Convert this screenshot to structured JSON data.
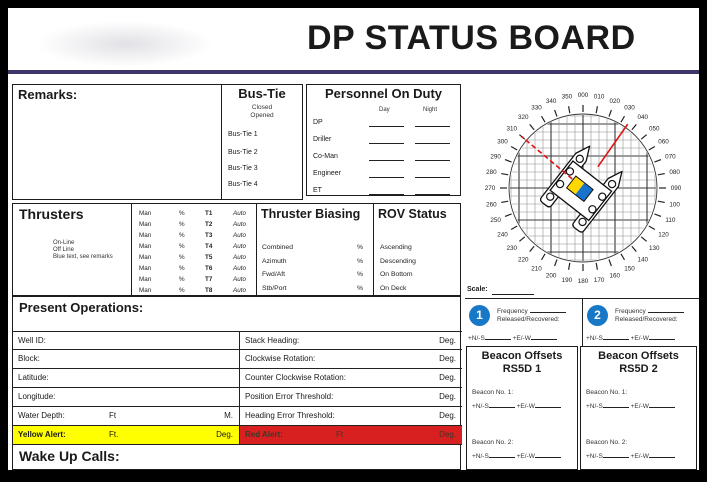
{
  "title": "DP STATUS BOARD",
  "remarks": {
    "label": "Remarks:"
  },
  "bus_tie": {
    "title": "Bus-Tie",
    "state_labels": [
      "Closed",
      "Opened"
    ],
    "items": [
      "Bus-Tie 1",
      "Bus-Tie 2",
      "Bus-Tie 3",
      "Bus-Tie 4"
    ]
  },
  "personnel": {
    "title": "Personnel On Duty",
    "columns": [
      "Day",
      "Night"
    ],
    "rows": [
      "DP",
      "Driller",
      "Co-Man",
      "Engineer",
      "ET"
    ]
  },
  "thrusters": {
    "title": "Thrusters",
    "legend": [
      "On-Line",
      "Off Line",
      "Blue text, see remarks"
    ],
    "rows": [
      {
        "man": "Man",
        "pct": "%",
        "id": "T1",
        "auto": "Auto"
      },
      {
        "man": "Man",
        "pct": "%",
        "id": "T2",
        "auto": "Auto"
      },
      {
        "man": "Man",
        "pct": "%",
        "id": "T3",
        "auto": "Auto"
      },
      {
        "man": "Man",
        "pct": "%",
        "id": "T4",
        "auto": "Auto"
      },
      {
        "man": "Man",
        "pct": "%",
        "id": "T5",
        "auto": "Auto"
      },
      {
        "man": "Man",
        "pct": "%",
        "id": "T6",
        "auto": "Auto"
      },
      {
        "man": "Man",
        "pct": "%",
        "id": "T7",
        "auto": "Auto"
      },
      {
        "man": "Man",
        "pct": "%",
        "id": "T8",
        "auto": "Auto"
      }
    ]
  },
  "thruster_biasing": {
    "title": "Thruster Biasing",
    "rows": [
      {
        "label": "Combined",
        "value": "%"
      },
      {
        "label": "Azimuth",
        "value": "%"
      },
      {
        "label": "Fwd/Aft",
        "value": "%"
      },
      {
        "label": "Stb/Port",
        "value": "%"
      }
    ]
  },
  "rov_status": {
    "title": "ROV Status",
    "items": [
      "Ascending",
      "Descending",
      "On Bottom",
      "On Deck"
    ]
  },
  "present_operations": {
    "title": "Present Operations:"
  },
  "ops_table": {
    "left_rows": [
      {
        "label": "Well ID:"
      },
      {
        "label": "Block:"
      },
      {
        "label": "Latitude:"
      },
      {
        "label": "Longitude:"
      },
      {
        "label": "Water Depth:",
        "unit1": "Ft",
        "unit2": "M."
      },
      {
        "label": "Yellow Alert:",
        "unit1": "Ft.",
        "unit2": "Deg."
      }
    ],
    "right_rows": [
      {
        "label": "Stack Heading:",
        "unit": "Deg."
      },
      {
        "label": "Clockwise Rotation:",
        "unit": "Deg."
      },
      {
        "label": "Counter Clockwise Rotation:",
        "unit": "Deg."
      },
      {
        "label": "Position Error Threshold:",
        "unit": "Deg."
      },
      {
        "label": "Heading Error Threshold:",
        "unit": "Deg."
      },
      {
        "label": "Red Alert:",
        "mid": "Ft",
        "unit": "Deg."
      }
    ]
  },
  "wake_up_calls": {
    "label": "Wake Up Calls:"
  },
  "compass": {
    "scale_label": "Scale:",
    "degree_labels": [
      "000",
      "010",
      "020",
      "030",
      "040",
      "050",
      "060",
      "070",
      "080",
      "090",
      "100",
      "110",
      "120",
      "130",
      "140",
      "150",
      "160",
      "170",
      "180",
      "190",
      "200",
      "210",
      "220",
      "230",
      "240",
      "250",
      "260",
      "270",
      "280",
      "290",
      "300",
      "310",
      "320",
      "330",
      "340",
      "350"
    ],
    "vessel_heading_deg": 38,
    "bearing_solid_deg": 35,
    "bearing_dashed_deg": 310
  },
  "beacon_trackers": [
    {
      "number": "1",
      "frequency_label": "Frequency",
      "status_label": "Released/Recovered:",
      "ns_label": "+N/-S",
      "ew_label": "+E/-W"
    },
    {
      "number": "2",
      "frequency_label": "Frequency",
      "status_label": "Released/Recovered:",
      "ns_label": "+N/-S",
      "ew_label": "+E/-W"
    }
  ],
  "beacon_offsets": [
    {
      "title": "Beacon Offsets",
      "subtitle": "RS5D 1",
      "entries": [
        {
          "label": "Beacon No. 1:",
          "ns_label": "+N/-S",
          "ew_label": "+E/-W"
        },
        {
          "label": "Beacon No. 2:",
          "ns_label": "+N/-S",
          "ew_label": "+E/-W"
        }
      ]
    },
    {
      "title": "Beacon Offsets",
      "subtitle": "RS5D 2",
      "entries": [
        {
          "label": "Beacon No. 1:",
          "ns_label": "+N/-S",
          "ew_label": "+E/-W"
        },
        {
          "label": "Beacon No. 2:",
          "ns_label": "+N/-S",
          "ew_label": "+E/-W"
        }
      ]
    }
  ],
  "colors": {
    "yellow_alert": "#ffff00",
    "red_alert": "#d92020",
    "beacon_circle": "#1878c8",
    "header_rule": "#3c3768",
    "bearing_line": "#e01010",
    "flag_yellow": "#ffd800",
    "flag_blue": "#1873cc"
  }
}
